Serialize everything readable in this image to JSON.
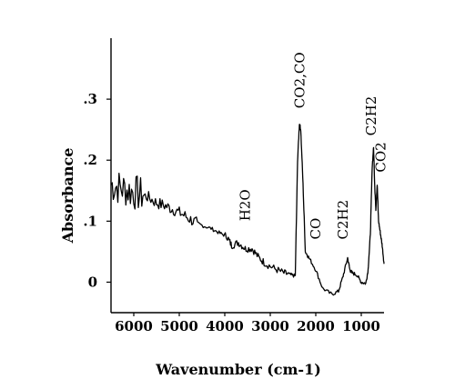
{
  "chart_data": {
    "type": "line",
    "title": "",
    "xlabel": "Wavenumber (cm-1)",
    "ylabel": "Absorbance",
    "xlim": [
      6500,
      500
    ],
    "ylim": [
      -0.05,
      0.4
    ],
    "x_reversed": true,
    "grid": false,
    "x_ticks": [
      {
        "value": 6000,
        "label": "6000"
      },
      {
        "value": 5000,
        "label": "5000"
      },
      {
        "value": 4000,
        "label": "4000"
      },
      {
        "value": 3000,
        "label": "3000"
      },
      {
        "value": 2000,
        "label": "2000"
      },
      {
        "value": 1000,
        "label": "1000"
      }
    ],
    "y_ticks": [
      {
        "value": 0,
        "label": "0"
      },
      {
        "value": 0.1,
        "label": ".1"
      },
      {
        "value": 0.2,
        "label": ".2"
      },
      {
        "value": 0.3,
        "label": ".3"
      }
    ],
    "series": [
      {
        "color": "#000000",
        "x": [
          6500,
          6300,
          6100,
          5900,
          5700,
          5500,
          5300,
          5100,
          4900,
          4700,
          4500,
          4300,
          4100,
          3950,
          3850,
          3700,
          3550,
          3400,
          3250,
          3100,
          2900,
          2700,
          2550,
          2450,
          2400,
          2360,
          2330,
          2280,
          2230,
          2150,
          2000,
          1850,
          1650,
          1500,
          1400,
          1300,
          1250,
          1200,
          1100,
          1000,
          900,
          850,
          800,
          760,
          730,
          700,
          680,
          650,
          620,
          580,
          540,
          500
        ],
        "y": [
          0.16,
          0.155,
          0.15,
          0.145,
          0.14,
          0.13,
          0.125,
          0.118,
          0.11,
          0.1,
          0.093,
          0.088,
          0.08,
          0.075,
          0.06,
          0.065,
          0.055,
          0.055,
          0.04,
          0.03,
          0.022,
          0.015,
          0.012,
          0.01,
          0.2,
          0.26,
          0.25,
          0.16,
          0.05,
          0.04,
          0.02,
          -0.01,
          -0.02,
          -0.015,
          0.01,
          0.04,
          0.02,
          0.015,
          0.012,
          0.0,
          -0.002,
          0.02,
          0.08,
          0.19,
          0.22,
          0.15,
          0.12,
          0.16,
          0.1,
          0.08,
          0.06,
          0.03
        ]
      }
    ],
    "annotations": [
      {
        "text": "H2O",
        "x": 3550,
        "y": 0.1
      },
      {
        "text": "CO2,CO",
        "x": 2350,
        "y": 0.285
      },
      {
        "text": "CO",
        "x": 2000,
        "y": 0.07
      },
      {
        "text": "C2H2",
        "x": 1400,
        "y": 0.07
      },
      {
        "text": "C2H2",
        "x": 780,
        "y": 0.24
      },
      {
        "text": "CO2",
        "x": 570,
        "y": 0.18
      }
    ]
  }
}
